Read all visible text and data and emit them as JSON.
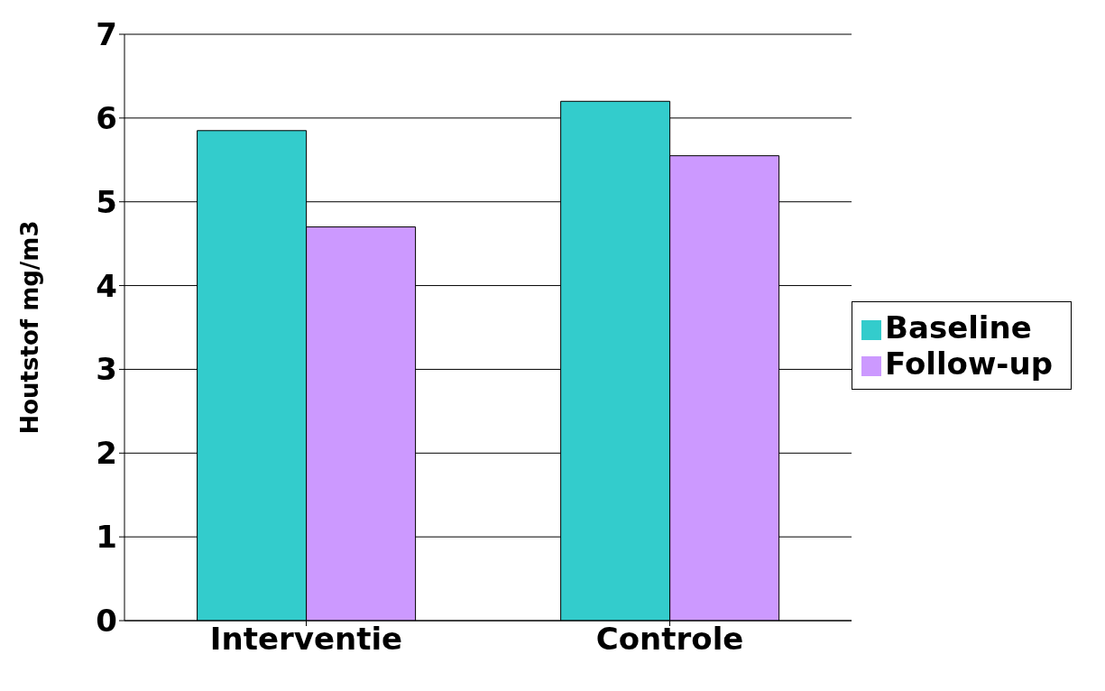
{
  "chart_data": {
    "type": "bar",
    "ylabel": "Houtstof mg/m3",
    "categories": [
      "Interventie",
      "Controle"
    ],
    "series": [
      {
        "name": "Baseline",
        "color": "#33cccc",
        "values": [
          5.85,
          6.2
        ]
      },
      {
        "name": "Follow-up",
        "color": "#cc99ff",
        "values": [
          4.7,
          5.55
        ]
      }
    ],
    "ylim": [
      0,
      7
    ],
    "yticks": [
      0,
      1,
      2,
      3,
      4,
      5,
      6,
      7
    ],
    "grid": "y",
    "legend": "right"
  }
}
